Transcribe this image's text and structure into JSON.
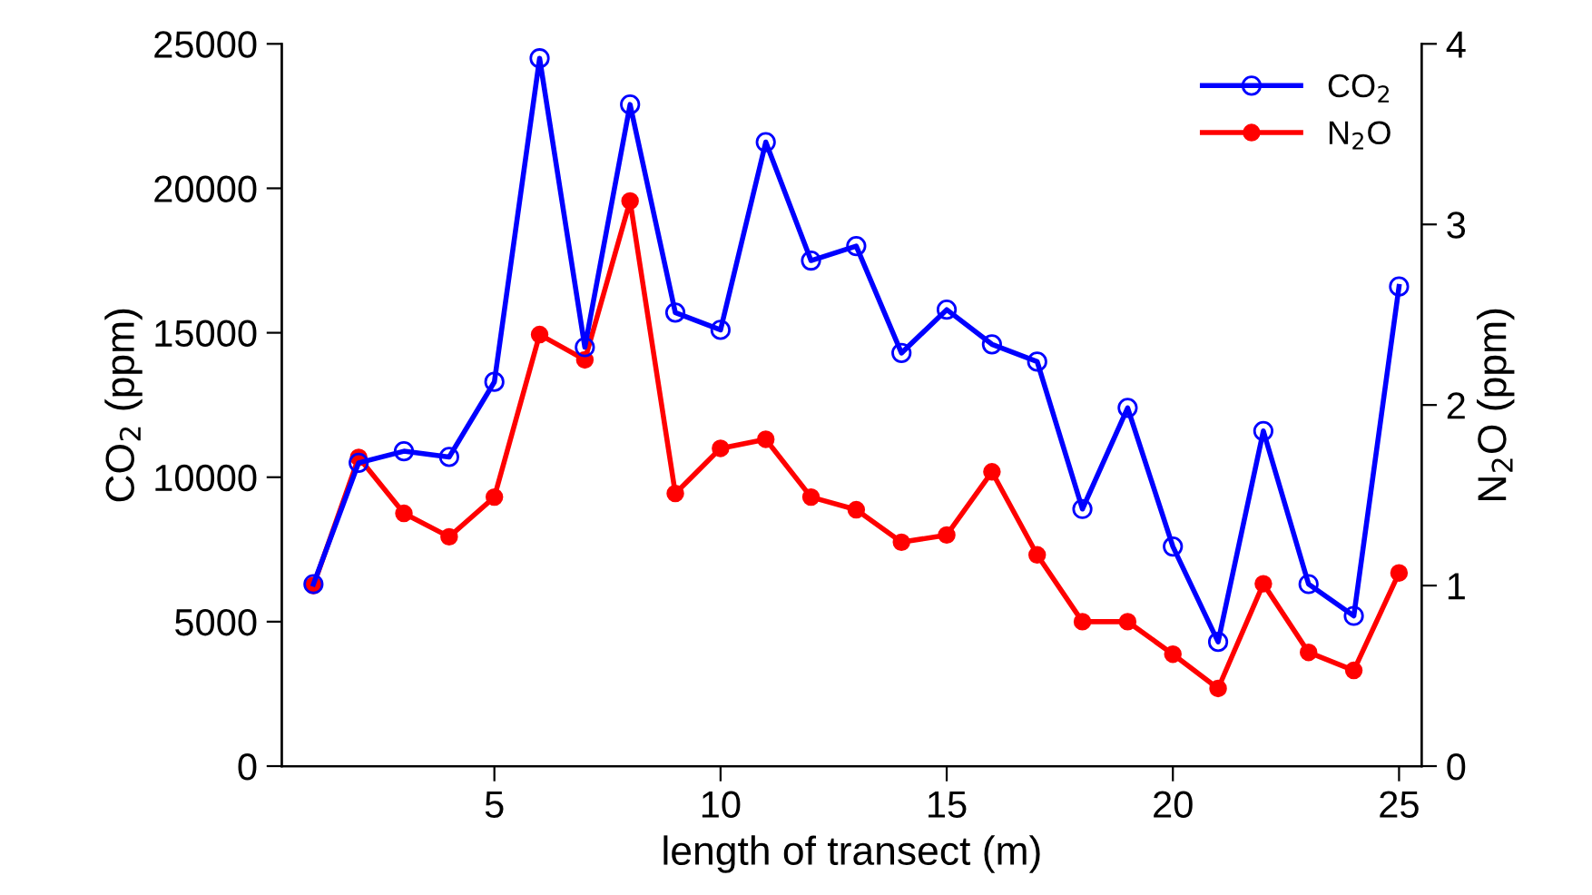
{
  "chart_data": {
    "type": "line",
    "xlabel": "length of transect (m)",
    "ylabel": "CO$_{2}$ (ppm)",
    "y2label": "N$_{2}$O (ppm)",
    "x": [
      1,
      2,
      3,
      4,
      5,
      6,
      7,
      8,
      9,
      10,
      11,
      12,
      13,
      14,
      15,
      16,
      17,
      18,
      19,
      20,
      21,
      22,
      23,
      24,
      25
    ],
    "series": [
      {
        "name": "CO$_{2}$",
        "color": "#0000ff",
        "marker": "circle",
        "values": [
          6300,
          10500,
          10900,
          10700,
          13300,
          24500,
          14500,
          22900,
          15700,
          15100,
          21600,
          17500,
          18000,
          14300,
          15800,
          14600,
          14000,
          8900,
          12400,
          7600,
          4300,
          11600,
          6300,
          5200,
          16600
        ]
      },
      {
        "name": "N$_{2}$O",
        "color": "#ff0000",
        "marker": "circle",
        "axis": "y2",
        "values": [
          1.0,
          1.71,
          1.4,
          1.27,
          1.49,
          2.39,
          2.25,
          3.13,
          1.51,
          1.76,
          1.81,
          1.49,
          1.42,
          1.24,
          1.28,
          1.63,
          1.17,
          0.8,
          0.8,
          0.62,
          0.43,
          1.01,
          0.63,
          0.53,
          1.07
        ]
      }
    ],
    "xlim": [
      0.3,
      25.5
    ],
    "xticks": [
      5,
      10,
      15,
      20,
      25
    ],
    "ylim": [
      0,
      25000
    ],
    "yticks": [
      0,
      5000,
      10000,
      15000,
      20000,
      25000
    ],
    "y2lim": [
      0,
      4
    ],
    "y2ticks": [
      0,
      1,
      2,
      3,
      4
    ],
    "legend": "top right",
    "grid": false,
    "line_style": "solid"
  }
}
